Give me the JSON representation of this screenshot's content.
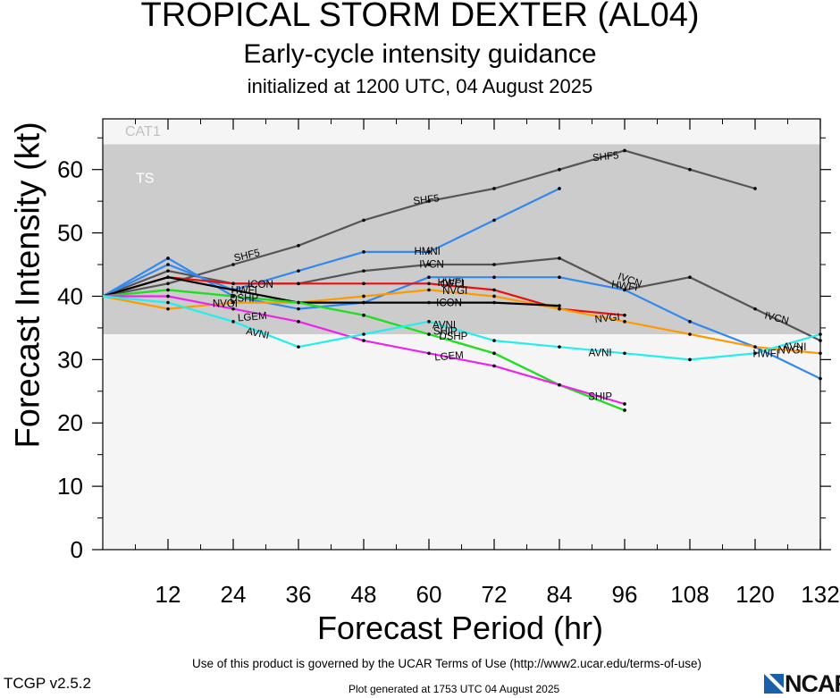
{
  "header": {
    "title": "TROPICAL STORM DEXTER (AL04)",
    "subtitle": "Early-cycle intensity guidance",
    "initialized": "initialized at 1200 UTC, 04 August 2025"
  },
  "footer": {
    "terms": "Use of this product is governed by the UCAR Terms of Use (http://www2.ucar.edu/terms-of-use)",
    "version": "TCGP v2.5.2",
    "generated": "Plot generated at 1753 UTC   04 August 2025",
    "logo": "NCAR"
  },
  "chart_data": {
    "type": "line",
    "xlabel": "Forecast Period (hr)",
    "ylabel": "Forecast Intensity (kt)",
    "xlim": [
      0,
      132
    ],
    "ylim": [
      0,
      68
    ],
    "xticks": [
      12,
      24,
      36,
      48,
      60,
      72,
      84,
      96,
      108,
      120,
      132
    ],
    "yticks": [
      0,
      10,
      20,
      30,
      40,
      50,
      60
    ],
    "bands": [
      {
        "label": "TS",
        "from": 34,
        "to": 64,
        "color": "#cccccc"
      },
      {
        "label": "CAT1",
        "from": 64,
        "to": 68,
        "color": "#f5f5f5"
      }
    ],
    "series": [
      {
        "name": "SHF5",
        "color": "#555555",
        "x": [
          0,
          12,
          24,
          36,
          48,
          60,
          72,
          84,
          96,
          108,
          120
        ],
        "y": [
          40,
          42,
          45,
          48,
          52,
          55,
          57,
          60,
          63,
          60,
          57
        ]
      },
      {
        "name": "IVCN",
        "color": "#555555",
        "x": [
          0,
          12,
          24,
          36,
          48,
          60,
          72,
          84,
          96,
          108,
          120,
          132
        ],
        "y": [
          40,
          44,
          42,
          42,
          44,
          45,
          45,
          46,
          41,
          43,
          38,
          33
        ]
      },
      {
        "name": "HMNI",
        "color": "#3388ee",
        "x": [
          0,
          12,
          24,
          36,
          48,
          60,
          72,
          84
        ],
        "y": [
          40,
          45,
          41,
          44,
          47,
          47,
          52,
          57
        ]
      },
      {
        "name": "HWFI",
        "color": "#3388ee",
        "x": [
          0,
          12,
          24,
          36,
          48,
          60,
          72,
          84,
          96,
          108,
          120,
          132
        ],
        "y": [
          40,
          46,
          40,
          38,
          39,
          43,
          43,
          43,
          41,
          36,
          32,
          27
        ]
      },
      {
        "name": "OFCL",
        "color": "#e81010",
        "x": [
          0,
          12,
          24,
          36,
          48,
          60,
          72,
          84,
          96
        ],
        "y": [
          40,
          43,
          42,
          42,
          42,
          42,
          41,
          38,
          37
        ]
      },
      {
        "name": "NVGI",
        "color": "#ff9900",
        "x": [
          0,
          12,
          24,
          36,
          48,
          60,
          72,
          84,
          96,
          108,
          120,
          132
        ],
        "y": [
          40,
          38,
          39,
          39,
          40,
          41,
          40,
          38,
          36,
          34,
          32,
          31
        ]
      },
      {
        "name": "ICON",
        "color": "#000000",
        "x": [
          0,
          12,
          24,
          36,
          48,
          60,
          72,
          84
        ],
        "y": [
          40,
          43,
          41,
          39,
          39,
          39,
          39,
          38.5
        ]
      },
      {
        "name": "SHIP",
        "color": "#22dd22",
        "x": [
          0,
          12,
          24,
          36,
          48,
          60,
          72,
          84,
          96
        ],
        "y": [
          40,
          41,
          40,
          39,
          37,
          34,
          31,
          26,
          22
        ]
      },
      {
        "name": "DSHP",
        "color": "#22dd22",
        "x": [
          0,
          12,
          24,
          36,
          48,
          60,
          72,
          84,
          96
        ],
        "y": [
          40,
          41,
          40,
          39,
          37,
          34,
          31,
          26,
          22
        ]
      },
      {
        "name": "LGEM",
        "color": "#ee22ee",
        "x": [
          0,
          12,
          24,
          36,
          48,
          60,
          72,
          84,
          96
        ],
        "y": [
          40,
          40,
          38,
          36,
          33,
          31,
          29,
          26,
          23
        ]
      },
      {
        "name": "AVNI",
        "color": "#22eeee",
        "x": [
          0,
          12,
          24,
          36,
          48,
          60,
          72,
          84,
          96,
          108,
          120,
          132
        ],
        "y": [
          40,
          39,
          36,
          32,
          34,
          36,
          33,
          32,
          31,
          30,
          31,
          34
        ]
      }
    ],
    "labels": [
      {
        "text": "SHF5",
        "x": 26.5,
        "y": 46.5,
        "angle": -13
      },
      {
        "text": "SHF5",
        "x": 59.5,
        "y": 55.3,
        "angle": -7
      },
      {
        "text": "SHF5",
        "x": 92.5,
        "y": 62.1,
        "angle": -6
      },
      {
        "text": "HMNI",
        "x": 59.7,
        "y": 47.1,
        "angle": 0
      },
      {
        "text": "IVCN",
        "x": 60.5,
        "y": 45.1,
        "angle": 0
      },
      {
        "text": "IVCN",
        "x": 97.0,
        "y": 42.6,
        "angle": 20
      },
      {
        "text": "IVCN",
        "x": 124.0,
        "y": 36.6,
        "angle": 14
      },
      {
        "text": "HWFI",
        "x": 96.0,
        "y": 41.7,
        "angle": 8
      },
      {
        "text": "HWFI",
        "x": 64.0,
        "y": 42.2,
        "angle": 0
      },
      {
        "text": "OFCL",
        "x": 64.6,
        "y": 42.0,
        "angle": 0
      },
      {
        "text": "NVGI",
        "x": 64.8,
        "y": 40.9,
        "angle": 0
      },
      {
        "text": "NVGI",
        "x": 92.8,
        "y": 36.6,
        "angle": -6
      },
      {
        "text": "NVGI",
        "x": 126.5,
        "y": 31.5,
        "angle": 0
      },
      {
        "text": "ICON",
        "x": 63.7,
        "y": 39.0,
        "angle": 0
      },
      {
        "text": "LGEM",
        "x": 27.5,
        "y": 36.8,
        "angle": -5
      },
      {
        "text": "LGEM",
        "x": 63.7,
        "y": 30.6,
        "angle": -5
      },
      {
        "text": "AVNI",
        "x": 28.5,
        "y": 34.2,
        "angle": 12
      },
      {
        "text": "AVNI",
        "x": 62.8,
        "y": 35.5,
        "angle": 0
      },
      {
        "text": "AVNI",
        "x": 91.5,
        "y": 31.1,
        "angle": 0
      },
      {
        "text": "AVNI",
        "x": 127.3,
        "y": 32.0,
        "angle": 0
      },
      {
        "text": "HWFI",
        "x": 122.0,
        "y": 31.0,
        "angle": 0
      },
      {
        "text": "NVGI",
        "x": 22.5,
        "y": 38.9,
        "angle": 0
      },
      {
        "text": "SHIP",
        "x": 63.0,
        "y": 34.5,
        "angle": 0
      },
      {
        "text": "DSHP",
        "x": 64.5,
        "y": 33.7,
        "angle": 0
      },
      {
        "text": "SHIP",
        "x": 91.5,
        "y": 24.2,
        "angle": 0
      },
      {
        "text": "HWFI",
        "x": 26.0,
        "y": 41.0,
        "angle": 0
      },
      {
        "text": "DSHP",
        "x": 26.0,
        "y": 39.7,
        "angle": 0
      },
      {
        "text": "ICON",
        "x": 29.0,
        "y": 41.9,
        "angle": 0
      }
    ]
  }
}
